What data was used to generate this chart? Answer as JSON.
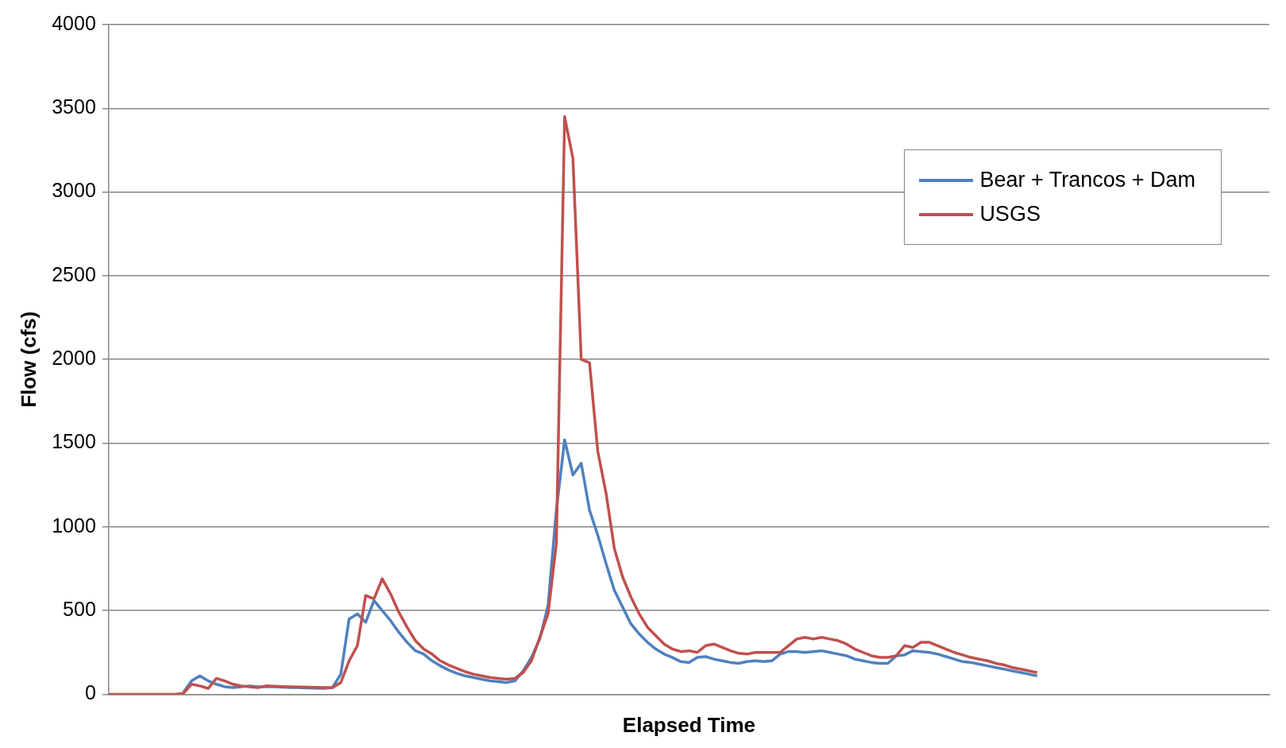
{
  "chart_data": {
    "type": "line",
    "xlabel": "Elapsed Time",
    "ylabel": "Flow (cfs)",
    "categories": [
      null,
      null,
      null,
      null,
      null,
      null,
      null,
      null,
      null,
      null,
      null,
      null,
      null,
      null,
      null,
      null,
      null,
      null,
      null,
      null,
      null,
      null,
      null,
      null,
      null,
      null,
      null,
      null,
      null,
      null,
      null,
      null,
      null,
      null,
      null,
      null,
      null,
      null,
      null,
      null,
      null,
      null,
      null,
      null,
      null,
      null,
      null,
      null,
      null,
      null,
      null,
      null,
      null,
      null,
      null,
      null,
      null,
      null,
      null,
      null,
      null,
      null,
      null,
      null,
      null,
      null,
      null,
      null,
      null,
      null,
      null,
      null,
      null,
      null,
      null,
      null,
      null,
      null,
      null,
      null,
      null,
      null,
      null,
      null,
      null,
      null,
      null,
      null,
      null,
      null,
      null,
      null,
      null,
      null,
      null,
      null,
      null,
      null,
      null,
      null,
      null,
      null,
      null,
      null,
      null,
      null,
      null,
      null,
      null,
      null,
      null,
      null,
      null,
      null,
      null,
      null,
      null,
      null,
      null,
      null,
      null,
      null,
      null,
      null,
      null,
      null,
      null,
      null,
      null,
      null,
      null,
      null,
      null,
      null,
      null,
      null,
      null,
      null,
      null,
      null,
      null
    ],
    "series": [
      {
        "name": "Bear + Trancos + Dam",
        "color": "#4f81bd",
        "values": [
          null,
          null,
          null,
          null,
          null,
          null,
          null,
          null,
          null,
          10,
          80,
          110,
          80,
          60,
          45,
          40,
          45,
          50,
          45,
          45,
          45,
          42,
          40,
          40,
          38,
          36,
          35,
          40,
          120,
          450,
          480,
          430,
          560,
          500,
          440,
          370,
          310,
          260,
          240,
          200,
          170,
          145,
          125,
          110,
          100,
          90,
          80,
          75,
          70,
          80,
          140,
          220,
          330,
          530,
          1100,
          1520,
          1310,
          1380,
          1100,
          950,
          780,
          620,
          520,
          420,
          360,
          310,
          270,
          240,
          220,
          195,
          190,
          220,
          225,
          210,
          200,
          190,
          185,
          195,
          200,
          195,
          200,
          240,
          255,
          255,
          250,
          255,
          260,
          250,
          240,
          230,
          210,
          200,
          190,
          185,
          185,
          230,
          235,
          260,
          255,
          250,
          240,
          225,
          210,
          195,
          190,
          180,
          170,
          160,
          150,
          140,
          130,
          120,
          110,
          null,
          null,
          null,
          null,
          null,
          null,
          null,
          null,
          null,
          null,
          null,
          null,
          null,
          null,
          null,
          null,
          null,
          null,
          null,
          null,
          null,
          null,
          null,
          null,
          null,
          null,
          null,
          null
        ]
      },
      {
        "name": "USGS",
        "color": "#c0504d",
        "values": [
          0,
          0,
          0,
          0,
          0,
          0,
          0,
          0,
          0,
          5,
          60,
          50,
          35,
          95,
          80,
          60,
          50,
          45,
          40,
          50,
          48,
          46,
          45,
          44,
          42,
          41,
          40,
          40,
          70,
          200,
          290,
          590,
          570,
          690,
          600,
          490,
          400,
          320,
          270,
          240,
          200,
          175,
          155,
          135,
          120,
          110,
          100,
          95,
          90,
          95,
          130,
          200,
          340,
          480,
          900,
          3450,
          3200,
          2000,
          1980,
          1450,
          1200,
          870,
          700,
          580,
          480,
          400,
          350,
          300,
          270,
          255,
          260,
          250,
          290,
          300,
          280,
          260,
          245,
          240,
          250,
          250,
          250,
          250,
          290,
          330,
          340,
          330,
          340,
          330,
          320,
          300,
          270,
          250,
          230,
          220,
          220,
          230,
          290,
          280,
          310,
          310,
          290,
          270,
          250,
          235,
          220,
          210,
          200,
          185,
          175,
          160,
          150,
          140,
          130,
          null,
          null,
          null,
          null,
          null,
          null,
          null,
          null,
          null,
          null,
          null,
          null,
          null,
          null,
          null,
          null,
          null,
          null,
          null,
          null,
          null,
          null,
          null,
          null,
          null,
          null,
          null,
          null
        ]
      }
    ],
    "ylim": [
      0,
      4000
    ],
    "yticks": [
      0,
      500,
      1000,
      1500,
      2000,
      2500,
      3000,
      3500,
      4000
    ],
    "grid": "y",
    "legend": "top right",
    "marker": "none",
    "line_style": "solid"
  }
}
